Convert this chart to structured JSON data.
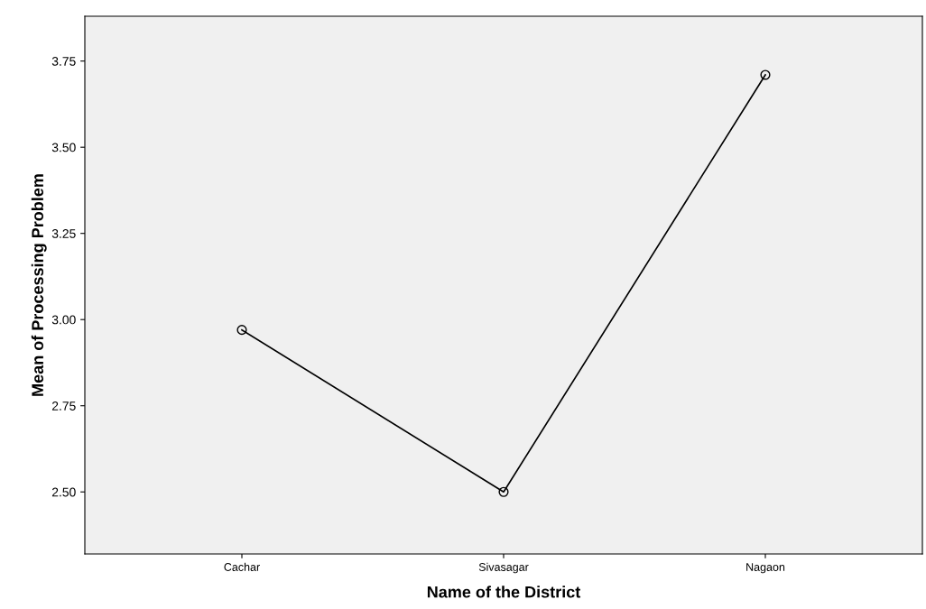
{
  "chart_data": {
    "type": "line",
    "xlabel": "Name of the District",
    "ylabel": "Mean of Processing Problem",
    "categories": [
      "Cachar",
      "Sivasagar",
      "Nagaon"
    ],
    "series": [
      {
        "color": "#000000",
        "values": [
          2.97,
          2.5,
          3.71
        ]
      }
    ],
    "ylim": [
      2.32,
      3.88
    ],
    "yticks": [
      {
        "value": 2.5,
        "label": "2.50"
      },
      {
        "value": 2.75,
        "label": "2.75"
      },
      {
        "value": 3.0,
        "label": "3.00"
      },
      {
        "value": 3.25,
        "label": "3.25"
      },
      {
        "value": 3.5,
        "label": "3.50"
      },
      {
        "value": 3.75,
        "label": "3.75"
      }
    ],
    "marker": "circle",
    "line_style": "solid",
    "grid": false
  }
}
